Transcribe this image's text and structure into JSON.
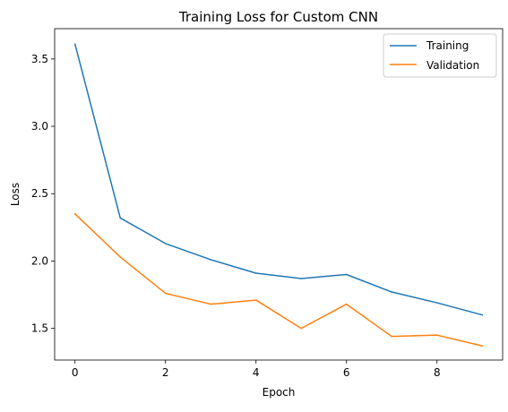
{
  "chart_data": {
    "type": "line",
    "title": "Training Loss for Custom CNN",
    "xlabel": "Epoch",
    "ylabel": "Loss",
    "x": [
      0,
      1,
      2,
      3,
      4,
      5,
      6,
      7,
      8,
      9
    ],
    "xlim": [
      -0.45,
      9.45
    ],
    "ylim": [
      1.265,
      3.725
    ],
    "xticks": [
      0,
      2,
      4,
      6,
      8
    ],
    "yticks": [
      1.5,
      2.0,
      2.5,
      3.0,
      3.5
    ],
    "xtick_labels": [
      "0",
      "2",
      "4",
      "6",
      "8"
    ],
    "ytick_labels": [
      "1.5",
      "2.0",
      "2.5",
      "3.0",
      "3.5"
    ],
    "grid": false,
    "legend_position": "top-right",
    "series": [
      {
        "name": "Training",
        "color": "#1f77b4",
        "values": [
          3.61,
          2.32,
          2.13,
          2.01,
          1.91,
          1.87,
          1.9,
          1.77,
          1.69,
          1.6
        ]
      },
      {
        "name": "Validation",
        "color": "#ff7f0e",
        "values": [
          2.35,
          2.03,
          1.76,
          1.68,
          1.71,
          1.5,
          1.68,
          1.44,
          1.45,
          1.37
        ]
      }
    ]
  }
}
